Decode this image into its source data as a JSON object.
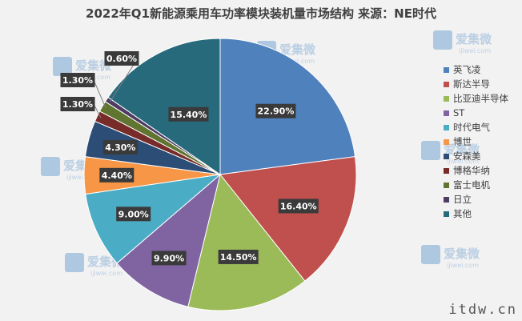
{
  "chart_data": {
    "type": "pie",
    "title": "2022年Q1新能源乘用车功率模块装机量市场结构 来源：NE时代",
    "slices": [
      {
        "name": "英飞凌",
        "value": 22.9,
        "label": "22.90%",
        "color": "#4f81bd"
      },
      {
        "name": "斯达半导",
        "value": 16.4,
        "label": "16.40%",
        "color": "#c0504d"
      },
      {
        "name": "比亚迪半导体",
        "value": 14.5,
        "label": "14.50%",
        "color": "#9bbb59"
      },
      {
        "name": "ST",
        "value": 9.9,
        "label": "9.90%",
        "color": "#8064a2"
      },
      {
        "name": "时代电气",
        "value": 9.0,
        "label": "9.00%",
        "color": "#4bacc6"
      },
      {
        "name": "博世",
        "value": 4.4,
        "label": "4.40%",
        "color": "#f79646"
      },
      {
        "name": "安森美",
        "value": 4.3,
        "label": "4.30%",
        "color": "#2c4d75"
      },
      {
        "name": "博格华纳",
        "value": 1.3,
        "label": "1.30%",
        "color": "#772c2a"
      },
      {
        "name": "富士电机",
        "value": 1.3,
        "label": "1.30%",
        "color": "#5f7530"
      },
      {
        "name": "日立",
        "value": 0.6,
        "label": "0.60%",
        "color": "#4d3b62"
      },
      {
        "name": "其他",
        "value": 15.4,
        "label": "15.40%",
        "color": "#276a7c"
      }
    ],
    "legend_position": "right",
    "start_angle": "12 o'clock, clockwise"
  },
  "watermarks": {
    "brand_text": "爱集微",
    "brand_url": "ijiwei.com",
    "corner_text": "itdw.cn"
  }
}
